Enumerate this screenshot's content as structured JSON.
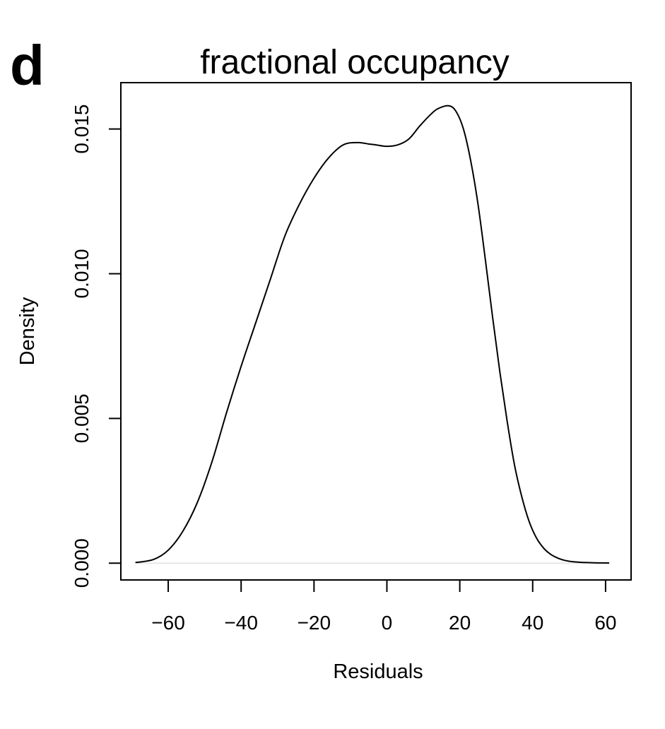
{
  "panel_letter": "d",
  "chart_data": {
    "type": "line",
    "title": "fractional occupancy",
    "xlabel": "Residuals",
    "ylabel": "Density",
    "xlim": [
      -73,
      67
    ],
    "ylim": [
      -0.00058,
      0.0166
    ],
    "x_ticks": [
      -60,
      -40,
      -20,
      0,
      20,
      40,
      60
    ],
    "x_tick_labels": [
      "−60",
      "−40",
      "−20",
      "0",
      "20",
      "40",
      "60"
    ],
    "y_ticks": [
      0.0,
      0.005,
      0.01,
      0.015
    ],
    "y_tick_labels": [
      "0.000",
      "0.005",
      "0.010",
      "0.015"
    ],
    "grid": false,
    "legend": false,
    "zero_line": true,
    "series": [
      {
        "x": [
          -69,
          -64,
          -60,
          -56,
          -52,
          -48,
          -44,
          -40,
          -36,
          -32,
          -28,
          -24,
          -20,
          -16,
          -12,
          -8,
          -5,
          -3,
          0,
          3,
          6,
          9,
          12,
          14,
          17,
          19,
          21,
          23,
          25,
          27,
          29,
          31,
          33,
          35,
          37,
          39,
          41,
          43,
          45,
          47,
          49,
          51,
          53,
          55,
          58,
          61
        ],
        "y": [
          2e-05,
          0.00013,
          0.00045,
          0.0011,
          0.0021,
          0.0035,
          0.0052,
          0.0068,
          0.0083,
          0.0098,
          0.0113,
          0.0124,
          0.0133,
          0.014,
          0.01445,
          0.01453,
          0.01448,
          0.01445,
          0.0144,
          0.01445,
          0.01465,
          0.0151,
          0.0155,
          0.0157,
          0.0158,
          0.0156,
          0.015,
          0.0139,
          0.0124,
          0.0105,
          0.0085,
          0.0066,
          0.0049,
          0.0034,
          0.0023,
          0.00145,
          0.00088,
          0.00052,
          0.0003,
          0.00017,
          9e-05,
          5e-05,
          3e-05,
          2e-05,
          1e-05,
          5e-06
        ]
      }
    ]
  }
}
